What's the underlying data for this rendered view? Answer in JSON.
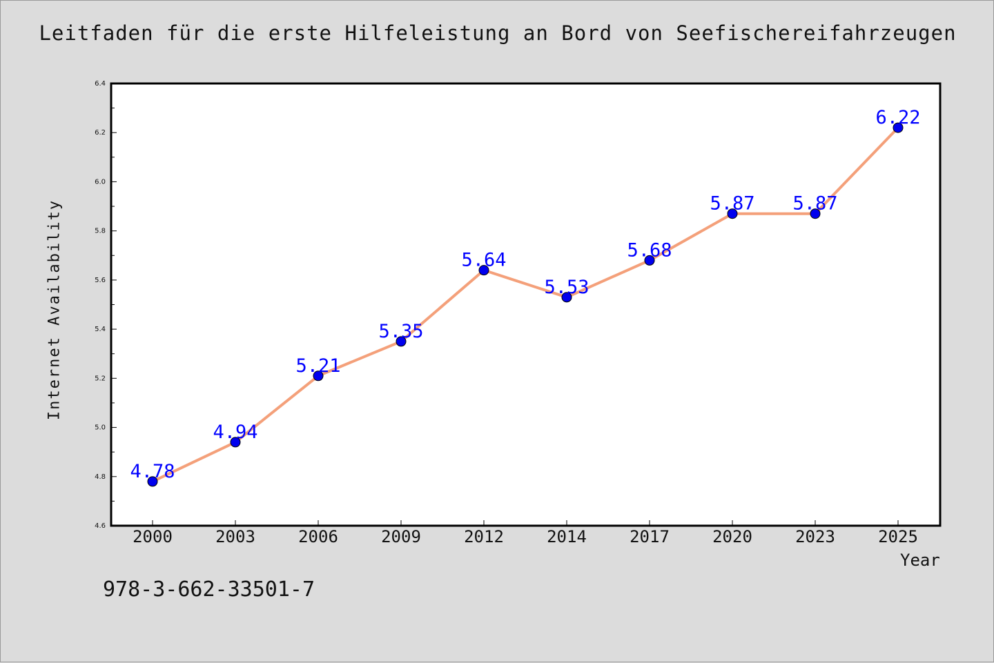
{
  "chart_data": {
    "type": "line",
    "title": "Leitfaden für die erste Hilfeleistung an Bord von Seefischereifahrzeugen",
    "xlabel": "Year",
    "ylabel": "Internet Availability",
    "categories": [
      "2000",
      "2003",
      "2006",
      "2009",
      "2012",
      "2014",
      "2017",
      "2020",
      "2023",
      "2025"
    ],
    "series": [
      {
        "values": [
          4.78,
          4.94,
          5.21,
          5.35,
          5.64,
          5.53,
          5.68,
          5.87,
          5.87,
          6.22
        ],
        "labels": [
          "4.78",
          "4.94",
          "5.21",
          "5.35",
          "5.64",
          "5.53",
          "5.68",
          "5.87",
          "5.87",
          "6.22"
        ],
        "line_color": "#f4a07a",
        "marker_color": "#0000ee"
      }
    ],
    "ylim": [
      4.6,
      6.4
    ],
    "yticks": [
      "4.6",
      "4.8",
      "5.0",
      "5.2",
      "5.4",
      "5.6",
      "5.8",
      "6.0",
      "6.2",
      "6.4"
    ],
    "grid": false,
    "label_color": "#0000ff"
  },
  "footer": {
    "code": "978-3-662-33501-7"
  }
}
